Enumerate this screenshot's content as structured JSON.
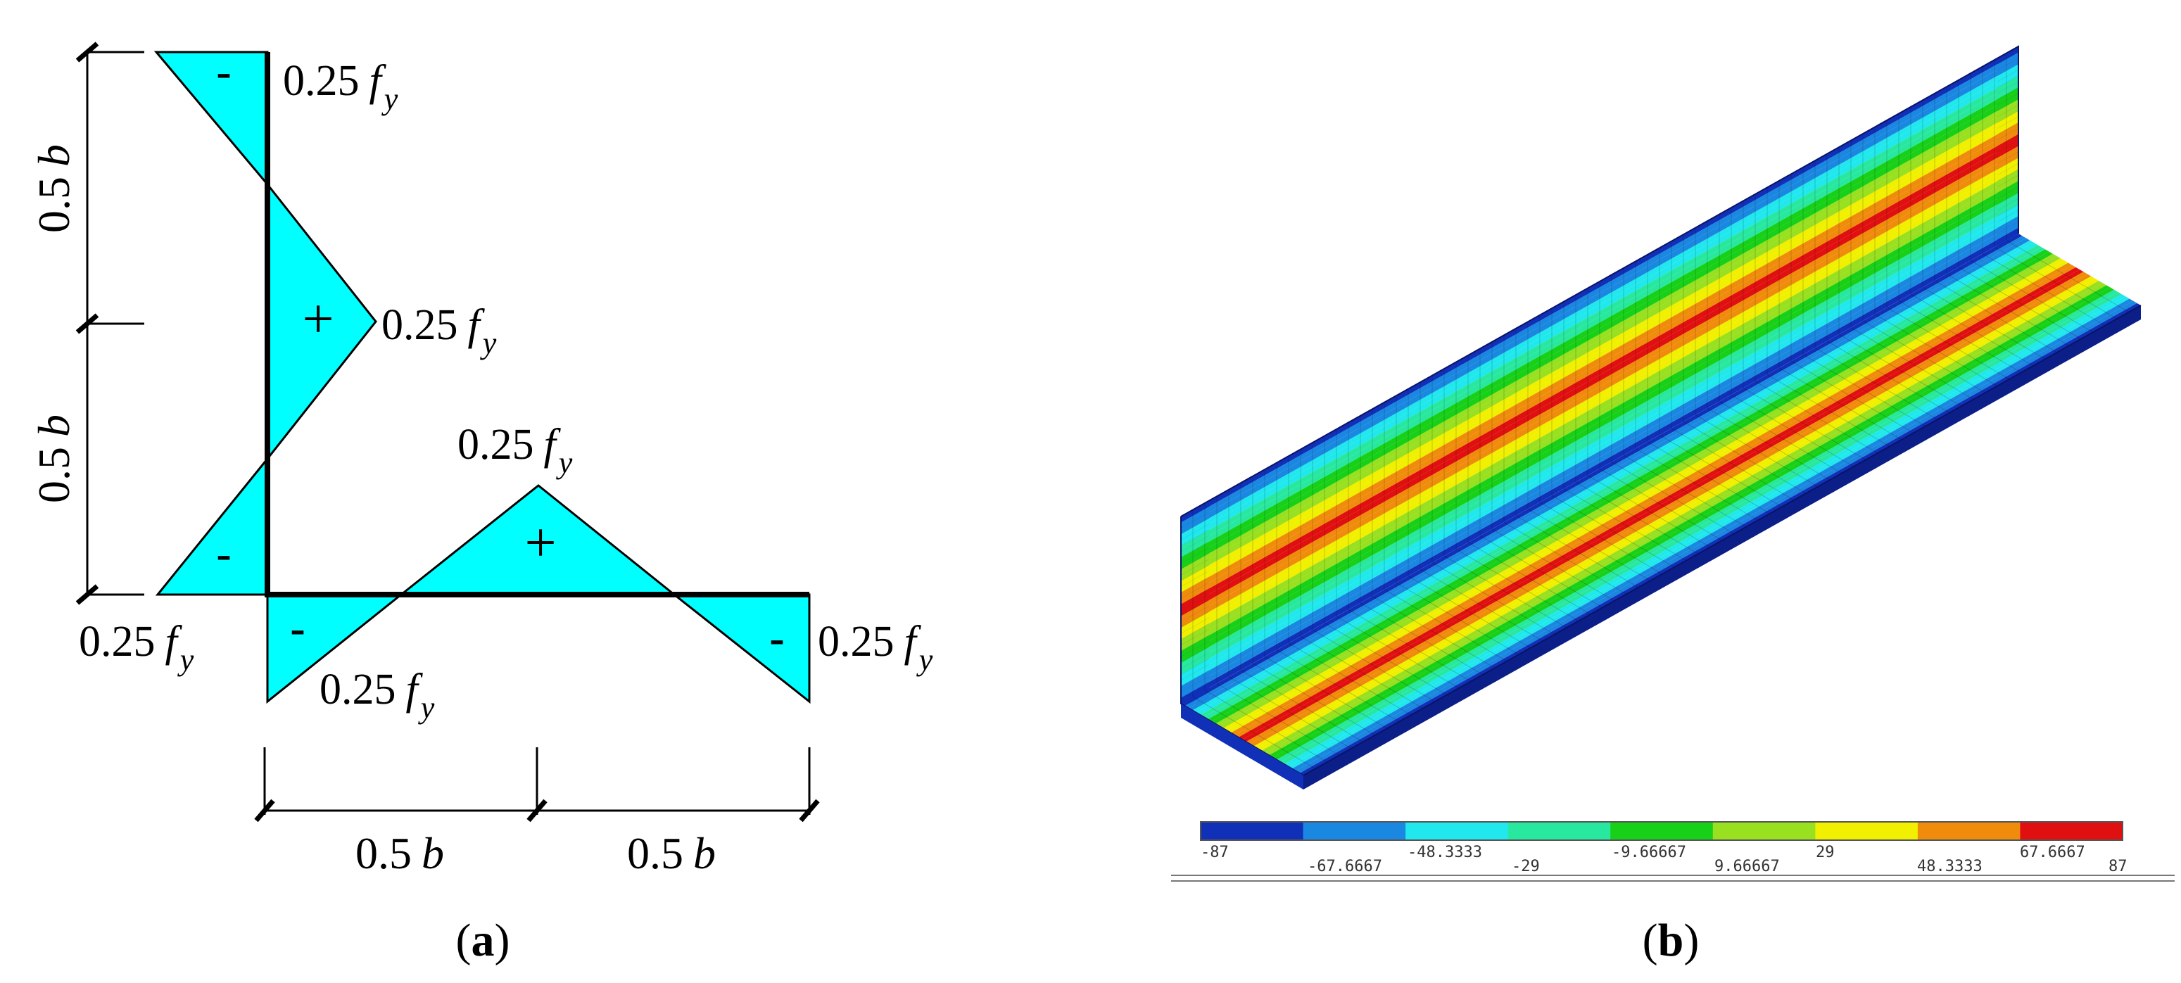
{
  "panel_a": {
    "caption": "a",
    "stress_label_value": "0.25",
    "stress_label_symbol": "f",
    "stress_label_sub": "y",
    "dimension_value": "0.5",
    "dimension_symbol": "b",
    "sign_minus": "-",
    "sign_plus": "+"
  },
  "panel_b": {
    "caption": "b",
    "legend": {
      "colors": [
        "#1030b8",
        "#1a88e0",
        "#20e8ec",
        "#28e8a0",
        "#18d018",
        "#98e020",
        "#f0f000",
        "#f08c0c",
        "#e01010"
      ],
      "ticks_top": [
        "-87",
        "-48.3333",
        "-9.66667",
        "29",
        "67.6667"
      ],
      "ticks_bottom": [
        "-67.6667",
        "-29",
        "9.66667",
        "48.3333",
        "87"
      ]
    }
  }
}
